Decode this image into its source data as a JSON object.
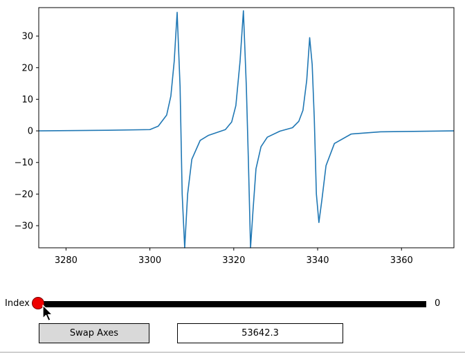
{
  "chart_data": {
    "type": "line",
    "title": "",
    "xlabel": "",
    "ylabel": "",
    "xlim": [
      3273.5,
      3372.5
    ],
    "ylim": [
      -37,
      39
    ],
    "xticks": [
      3280,
      3300,
      3320,
      3340,
      3360
    ],
    "yticks": [
      -30,
      -20,
      -10,
      0,
      10,
      20,
      30
    ],
    "grid": false,
    "legend": "none",
    "series": [
      {
        "color": "#1f77b4",
        "x": [
          3273.5,
          3290,
          3300,
          3302,
          3304,
          3305,
          3305.8,
          3306.5,
          3307.2,
          3307.7,
          3308.3,
          3309,
          3310,
          3312,
          3314,
          3316,
          3318,
          3319.5,
          3320.5,
          3321.5,
          3322.3,
          3323,
          3323.5,
          3324,
          3324.6,
          3325.3,
          3326.5,
          3328,
          3331,
          3334,
          3335.5,
          3336.5,
          3337.4,
          3338.1,
          3338.7,
          3339.2,
          3339.7,
          3340.3,
          3341,
          3342,
          3344,
          3348,
          3355,
          3372.5
        ],
        "y": [
          0,
          0.2,
          0.4,
          1.5,
          5,
          11,
          22,
          37.5,
          14,
          -20,
          -37,
          -20,
          -9,
          -3,
          -1.4,
          -0.5,
          0.4,
          2.8,
          8,
          22,
          38,
          14,
          -10,
          -37,
          -25,
          -12,
          -5,
          -2,
          -0.1,
          1,
          3,
          6.5,
          16,
          29.5,
          21,
          4,
          -20,
          -29,
          -22,
          -11,
          -4,
          -1,
          -0.3,
          0
        ]
      }
    ]
  },
  "slider": {
    "label": "Index",
    "value": "0",
    "fraction": 0
  },
  "controls": {
    "swap_label": "Swap Axes",
    "text_value": "53642.3"
  },
  "colors": {
    "line": "#1f77b4",
    "handle": "#ee0000",
    "track": "#000000",
    "button_bg": "#d9d9d9"
  }
}
